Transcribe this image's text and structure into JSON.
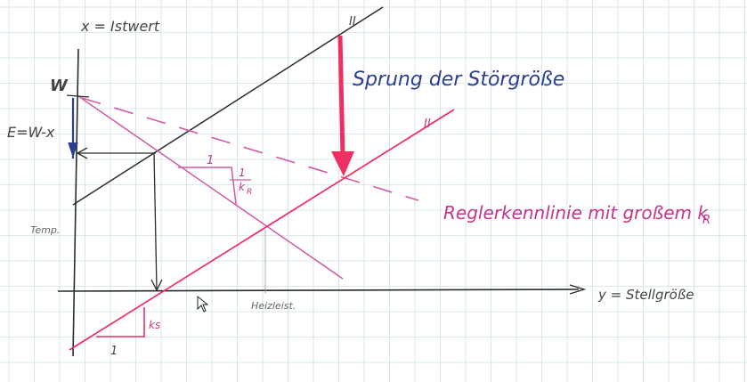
{
  "labels": {
    "x_axis_top": "x = Istwert",
    "w": "W",
    "e": "E=W-x",
    "temp": "Temp.",
    "y_axis": "y = Stellgröße",
    "heizleistung": "Heizleist.",
    "sprung": "Sprung der Störgröße",
    "regler": "Reglerkennlinie mit großem k",
    "regler_sub": "R",
    "one_top": "1",
    "kr_frac_num": "1",
    "kr_frac_den": "k",
    "kr_frac_sub": "R",
    "ks": "ks",
    "one_bottom": "1",
    "mark_top": "II",
    "mark_red": "II"
  },
  "colors": {
    "grid": "#cfe0ea",
    "black": "#2b2b2b",
    "pink_line": "#d05aa6",
    "red_line": "#ee2f62",
    "blue": "#2a3f8f",
    "magenta_text": "#c2378a"
  }
}
